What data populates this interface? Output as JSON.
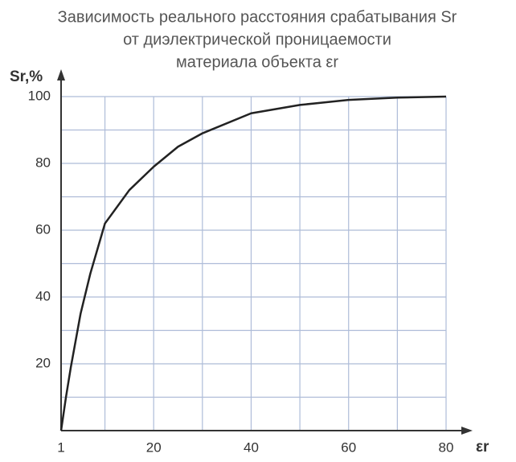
{
  "chart_data": {
    "type": "line",
    "title": [
      "Зависимость реального расстояния срабатывания Sr",
      "от диэлектрической проницаемости",
      "материала объекта εr"
    ],
    "y_label": "Sr,%",
    "x_label": "εr",
    "x": [
      1,
      2,
      3,
      5,
      7,
      10,
      15,
      20,
      25,
      30,
      40,
      50,
      60,
      70,
      80
    ],
    "series": [
      {
        "color": "#222222",
        "values": [
          0,
          10,
          19,
          35,
          47,
          62,
          72,
          79,
          85,
          89,
          95,
          97.5,
          99,
          99.7,
          100
        ]
      }
    ],
    "xlim": [
      1,
      80
    ],
    "xticks": [
      1,
      20,
      40,
      60,
      80
    ],
    "ylim": [
      0,
      100
    ],
    "yticks": [
      20,
      40,
      60,
      80,
      100
    ],
    "xgrid": [
      10,
      30,
      50,
      70
    ],
    "ygrid": [
      10,
      30,
      50,
      70,
      90
    ],
    "grid": true,
    "grid_color": "#aebcd8"
  }
}
